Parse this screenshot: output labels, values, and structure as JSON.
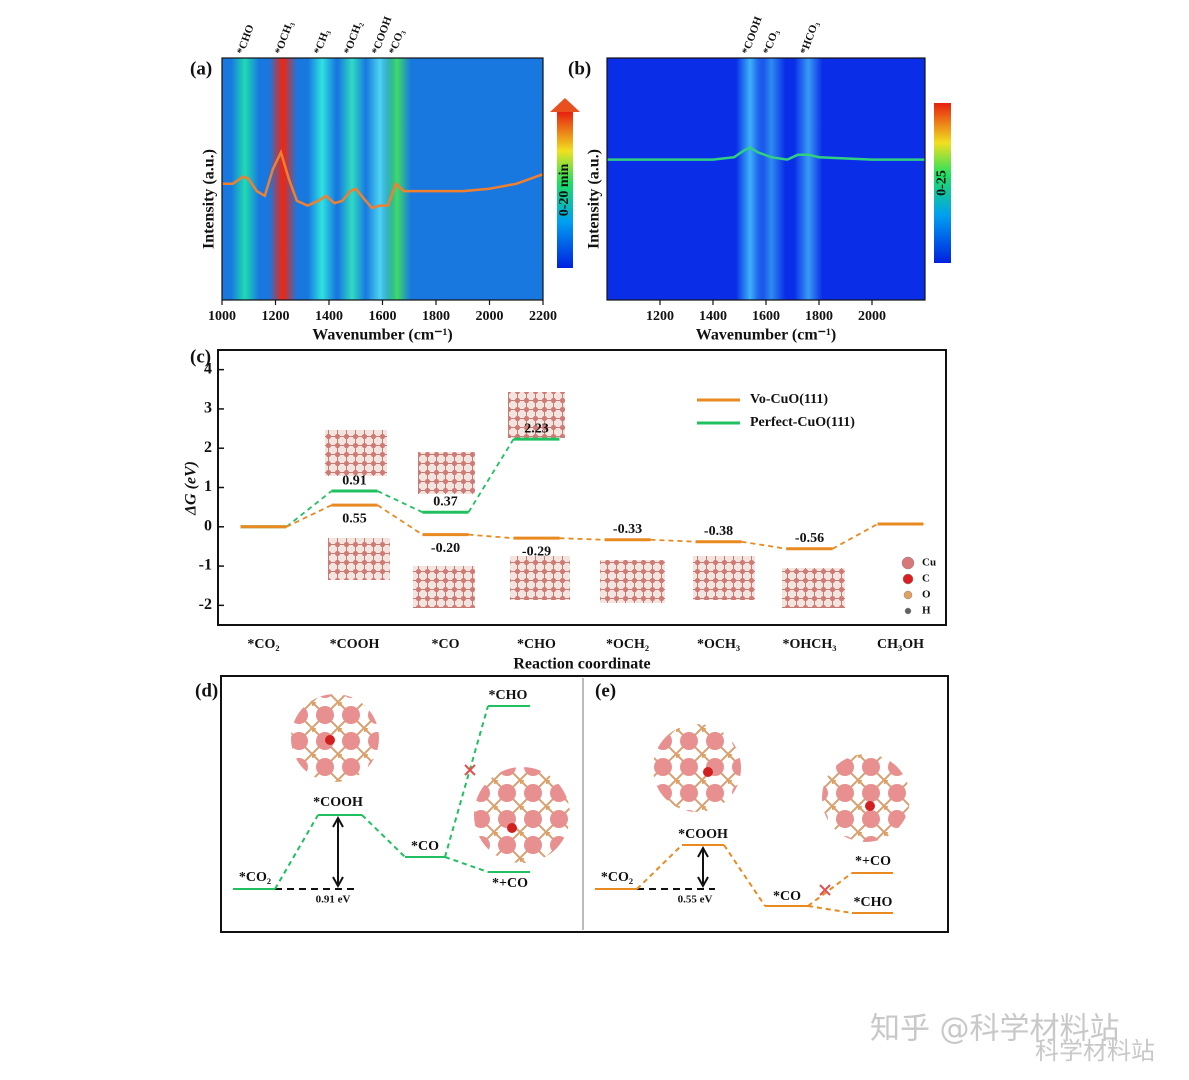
{
  "chart_data": [
    {
      "type": "spectrum_map",
      "panel_label": "(a)",
      "x_label": "Wavenumber (cm⁻¹)",
      "y_label": "Intensity (a.u.)",
      "colorbar_label": "0-20 min",
      "background": "#1878e0",
      "xlim": [
        1000,
        2200
      ],
      "xticks": [
        1000,
        1200,
        1400,
        1600,
        1800,
        2000,
        2200
      ],
      "ylim": [
        0,
        1
      ],
      "bands": [
        {
          "label": "*CHO",
          "x": 1086,
          "color": "#20e0b0"
        },
        {
          "label": "*OCH₃",
          "x": 1228,
          "color": "#ff2000"
        },
        {
          "label": "*CH₃",
          "x": 1374,
          "color": "#30e8e0"
        },
        {
          "label": "*OCH₂",
          "x": 1486,
          "color": "#30e0c0"
        },
        {
          "label": "*COOH",
          "x": 1590,
          "color": "#50d8f0"
        },
        {
          "label": "*CO₃",
          "x": 1654,
          "color": "#40e060"
        }
      ],
      "curve": {
        "color": "#f08030",
        "x": [
          1000,
          1040,
          1080,
          1100,
          1130,
          1160,
          1190,
          1220,
          1250,
          1280,
          1320,
          1360,
          1390,
          1420,
          1450,
          1480,
          1500,
          1530,
          1560,
          1590,
          1620,
          1650,
          1680,
          1720,
          1800,
          1900,
          2000,
          2100,
          2200
        ],
        "values": [
          0.48,
          0.48,
          0.51,
          0.5,
          0.45,
          0.43,
          0.54,
          0.61,
          0.5,
          0.41,
          0.39,
          0.41,
          0.43,
          0.4,
          0.41,
          0.45,
          0.46,
          0.42,
          0.38,
          0.39,
          0.39,
          0.48,
          0.45,
          0.45,
          0.45,
          0.45,
          0.46,
          0.48,
          0.52
        ]
      }
    },
    {
      "type": "spectrum_map",
      "panel_label": "(b)",
      "x_label": "Wavenumber (cm⁻¹)",
      "y_label": "Intensity (a.u.)",
      "colorbar_label": "0-25",
      "background": "#0a2ee8",
      "xlim": [
        1000,
        2200
      ],
      "xticks": [
        1200,
        1400,
        1600,
        1800,
        2000
      ],
      "ylim": [
        0,
        1
      ],
      "bands": [
        {
          "label": "*COOH",
          "x": 1540,
          "color": "#40b8f8"
        },
        {
          "label": "*CO₃",
          "x": 1620,
          "color": "#3090f0"
        },
        {
          "label": "*HCO₃",
          "x": 1760,
          "color": "#3aa0f4"
        }
      ],
      "curve": {
        "color": "#30d080",
        "x": [
          1000,
          1200,
          1400,
          1480,
          1520,
          1540,
          1570,
          1620,
          1680,
          1720,
          1760,
          1800,
          2000,
          2200
        ],
        "values": [
          0.58,
          0.58,
          0.58,
          0.59,
          0.62,
          0.63,
          0.61,
          0.59,
          0.58,
          0.6,
          0.6,
          0.59,
          0.58,
          0.58
        ]
      }
    },
    {
      "type": "energy",
      "panel_label": "(c)",
      "x_label": "Reaction coordinate",
      "y_label": "ΔG (eV)",
      "categories": [
        "*CO₂",
        "*COOH",
        "*CO",
        "*CHO",
        "*OCH₂",
        "*OCH₃",
        "*OHCH₃",
        "CH₃OH"
      ],
      "ylim": [
        -2.5,
        4.5
      ],
      "yticks": [
        -2,
        -1,
        0,
        1,
        2,
        3,
        4
      ],
      "legend": "upper right",
      "series": [
        {
          "name": "Perfect-CuO(111)",
          "color": "#20c060",
          "values": [
            0,
            0.91,
            0.37,
            2.23,
            null,
            null,
            null,
            null
          ],
          "value_labels": [
            null,
            "0.91",
            "0.37",
            "2.23",
            null,
            null,
            null,
            null
          ]
        },
        {
          "name": "Vo-CuO(111)",
          "color": "#e88a20",
          "values": [
            0,
            0.55,
            -0.2,
            -0.29,
            -0.33,
            -0.38,
            -0.56,
            0.07
          ],
          "value_labels": [
            null,
            "0.55",
            "-0.20",
            "-0.29",
            "-0.33",
            "-0.38",
            "-0.56",
            null
          ]
        }
      ],
      "atom_legend": [
        {
          "label": "Cu",
          "color": "#d87878"
        },
        {
          "label": "C",
          "color": "#d82020"
        },
        {
          "label": "O",
          "color": "#e0a060"
        },
        {
          "label": "H",
          "color": "#606060"
        }
      ]
    }
  ],
  "diagrams": [
    {
      "panel_label": "(d)",
      "levels": [
        "*CO₂",
        "*COOH",
        "*CO",
        "*CHO",
        "*+CO"
      ],
      "barrier": "0.91 eV"
    },
    {
      "panel_label": "(e)",
      "levels": [
        "*CO₂",
        "*COOH",
        "*CO",
        "*+CO",
        "*CHO"
      ],
      "barrier": "0.55 eV"
    }
  ],
  "watermark": {
    "main": "知乎 @科学材料站",
    "sub": "科学材料站"
  }
}
